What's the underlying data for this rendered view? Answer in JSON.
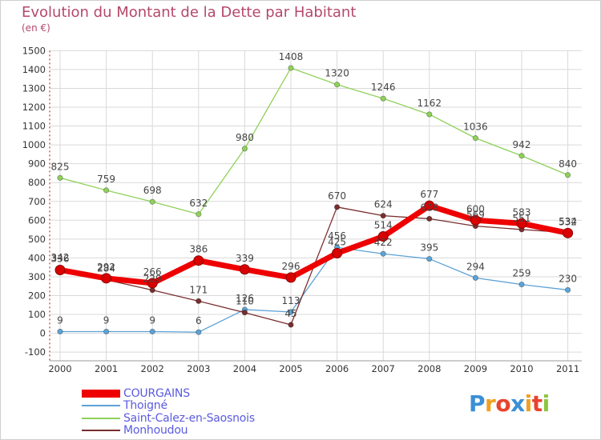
{
  "title": "Evolution du Montant de la Dette par Habitant",
  "unit": "(en €)",
  "brand": {
    "letters": [
      "P",
      "r",
      "o",
      "x",
      "i",
      "t",
      "i"
    ],
    "colors": [
      "#3b8fd6",
      "#f0a020",
      "#e8432e",
      "#3b8fd6",
      "#f0a020",
      "#e8432e",
      "#8cc63f"
    ]
  },
  "chart_data": {
    "type": "line",
    "title": "Evolution du Montant de la Dette par Habitant",
    "ylabel": "(en €)",
    "ylim": [
      -100,
      1500
    ],
    "yticks": [
      "-100",
      "0",
      "100",
      "200",
      "300",
      "400",
      "500",
      "600",
      "700",
      "800",
      "900",
      "1000",
      "1100",
      "1200",
      "1300",
      "1400",
      "1500"
    ],
    "categories": [
      "2000",
      "2001",
      "2002",
      "2003",
      "2004",
      "2005",
      "2006",
      "2007",
      "2008",
      "2009",
      "2010",
      "2011"
    ],
    "series": [
      {
        "name": "Saint-Calez-en-Saosnois",
        "color": "#8fd15a",
        "values": [
          825,
          759,
          698,
          632,
          980,
          1408,
          1320,
          1246,
          1162,
          1036,
          942,
          840
        ],
        "labels": [
          "825",
          "759",
          "698",
          "632",
          "980",
          "1408",
          "1320",
          "1246",
          "1162",
          "1036",
          "942",
          "840"
        ]
      },
      {
        "name": "Thoigné",
        "color": "#5da3d6",
        "values": [
          9,
          9,
          9,
          6,
          126,
          113,
          456,
          422,
          395,
          294,
          259,
          230
        ],
        "labels": [
          "9",
          "9",
          "9",
          "6",
          "126",
          "113",
          "456",
          "422",
          "395",
          "294",
          "259",
          "230"
        ]
      },
      {
        "name": "Monhoudou",
        "color": "#7a2e2e",
        "values": [
          342,
          284,
          229,
          171,
          110,
          45,
          670,
          624,
          608,
          569,
          551,
          534
        ],
        "labels": [
          "342",
          "284",
          "229",
          "171",
          "110",
          "45",
          "670",
          "624",
          "608",
          "569",
          "551",
          "534"
        ]
      },
      {
        "name": "COURGAINS",
        "color": "#ee0000",
        "values": [
          336,
          292,
          266,
          386,
          339,
          296,
          425,
          514,
          677,
          600,
          583,
          532
        ],
        "labels": [
          "336",
          "292",
          "266",
          "386",
          "339",
          "296",
          "425",
          "514",
          "677",
          "600",
          "583",
          "532"
        ]
      }
    ],
    "legend": [
      {
        "name": "COURGAINS",
        "color": "#ee0000"
      },
      {
        "name": "Thoigné",
        "color": "#5da3d6"
      },
      {
        "name": "Saint-Calez-en-Saosnois",
        "color": "#8fd15a"
      },
      {
        "name": "Monhoudou",
        "color": "#7a2e2e"
      }
    ]
  }
}
